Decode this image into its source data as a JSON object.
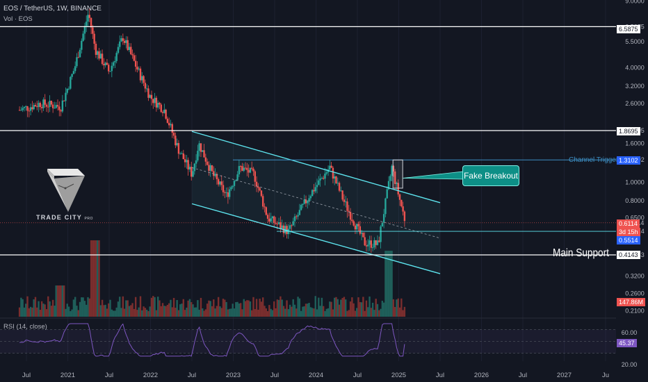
{
  "header": {
    "symbol_line": "EOS / TetherUS, 1W, BINANCE",
    "volume_label": "Vol · EOS"
  },
  "rsi": {
    "label": "RSI (14, close)",
    "value_label": "45.37",
    "axis_ticks": [
      "60.00",
      "20.00"
    ]
  },
  "watermark": {
    "brand": "TRADE CITY",
    "brand_suffix": "PRO"
  },
  "annotations": {
    "fake_breakout": "Fake Breakout",
    "main_support": "Main Support",
    "channel_trigger": "Channel Trigger"
  },
  "price_tags": {
    "level_6_5875": "6.5875",
    "level_1_8695": "1.8695",
    "level_1_3102": "1.3102",
    "current": "0.6114",
    "countdown": "3d 15h",
    "level_0_5514": "0.5514",
    "level_0_4143": "0.4143",
    "volume": "147.86M"
  },
  "colors": {
    "background": "#131722",
    "up": "#26a69a",
    "down": "#ef5350",
    "channel": "#5ee6f0",
    "level": "#ffffff",
    "trigger": "#3d8fc4",
    "rsi_line": "#7e57c2",
    "callout": "#0d8f86"
  },
  "chart_data": {
    "type": "candlestick",
    "title": "EOS / TetherUS, 1W, BINANCE",
    "y_scale": "log",
    "y_tick_labels": [
      "9.0000",
      "6.5875",
      "5.5000",
      "4.0000",
      "3.2000",
      "2.6000",
      "1.8695",
      "1.6000",
      "1.3102",
      "1.0000",
      "0.8000",
      "0.6500",
      "0.6114",
      "0.5514",
      "0.4143",
      "0.3200",
      "0.2600",
      "0.2100"
    ],
    "x_tick_labels": [
      "Jul",
      "2021",
      "Jul",
      "2022",
      "Jul",
      "2023",
      "Jul",
      "2024",
      "Jul",
      "2025",
      "Jul",
      "2026",
      "Jul",
      "2027",
      "Ju"
    ],
    "horizontal_levels": [
      6.5875,
      1.8695,
      0.5514,
      0.4143
    ],
    "channel_trigger": 1.3102,
    "current_price": 0.6114,
    "current_volume": "147.86M",
    "descending_channel": {
      "upper": [
        [
          "2022-07",
          1.85
        ],
        [
          "2025-07",
          0.78
        ]
      ],
      "lower": [
        [
          "2022-07",
          0.77
        ],
        [
          "2025-07",
          0.33
        ]
      ]
    },
    "approx_price_path": [
      [
        "2020-06",
        2.4
      ],
      [
        "2020-09",
        2.6
      ],
      [
        "2020-12",
        2.5
      ],
      [
        "2021-02",
        4.0
      ],
      [
        "2021-04",
        7.8
      ],
      [
        "2021-05",
        5.0
      ],
      [
        "2021-07",
        3.8
      ],
      [
        "2021-09",
        5.8
      ],
      [
        "2021-11",
        4.0
      ],
      [
        "2022-01",
        2.8
      ],
      [
        "2022-03",
        2.4
      ],
      [
        "2022-05",
        1.5
      ],
      [
        "2022-07",
        1.1
      ],
      [
        "2022-08",
        1.6
      ],
      [
        "2022-10",
        1.1
      ],
      [
        "2022-12",
        0.85
      ],
      [
        "2023-02",
        1.2
      ],
      [
        "2023-04",
        1.1
      ],
      [
        "2023-06",
        0.65
      ],
      [
        "2023-09",
        0.55
      ],
      [
        "2023-12",
        0.85
      ],
      [
        "2024-03",
        1.2
      ],
      [
        "2024-05",
        0.8
      ],
      [
        "2024-08",
        0.48
      ],
      [
        "2024-10",
        0.47
      ],
      [
        "2024-12",
        1.2
      ],
      [
        "2025-01",
        0.85
      ],
      [
        "2025-02",
        0.61
      ]
    ],
    "rsi": {
      "period": 14,
      "current": 45.37,
      "ylim": [
        20,
        80
      ]
    }
  }
}
